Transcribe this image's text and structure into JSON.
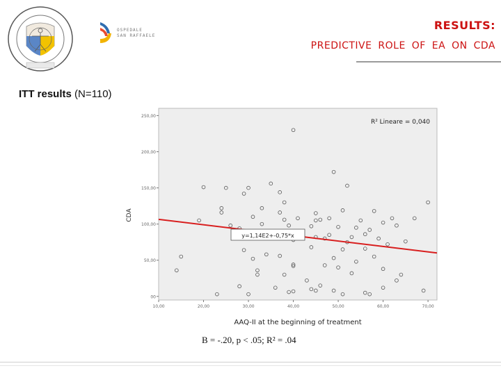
{
  "header": {
    "title": "RESULTS:",
    "subtitle": "PREDICTIVE ROLE OF EA ON CDA",
    "logos": {
      "university": "university-seal",
      "hospital": "hospital-logo"
    },
    "hospital_text": [
      "OSPEDALE",
      "SAN RAFFAELE"
    ]
  },
  "section": {
    "label_bold": "ITT results",
    "label_rest": "(N=110)"
  },
  "chart_data": {
    "type": "scatter",
    "xlabel": "AAQ-II at the beginning of treatment",
    "ylabel": "CDA",
    "xlim": [
      10,
      72
    ],
    "ylim": [
      -5,
      260
    ],
    "xticks": [
      10,
      20,
      30,
      40,
      50,
      60,
      70
    ],
    "xtick_labels": [
      "10,00",
      "20,00",
      "30,00",
      "40,00",
      "50,00",
      "60,00",
      "70,00"
    ],
    "yticks": [
      0,
      50,
      100,
      150,
      200,
      250
    ],
    "ytick_labels": [
      "00",
      "50,00",
      "100,00",
      "150,00",
      "200,00",
      "250,00"
    ],
    "r2_label": "R² Lineare = 0,040",
    "fit_label": "y=1,14E2+-0,75*x",
    "fit": {
      "intercept": 114,
      "slope": -0.75
    },
    "grid": false,
    "points": [
      [
        40,
        230
      ],
      [
        49,
        172
      ],
      [
        35,
        156
      ],
      [
        52,
        153
      ],
      [
        20,
        151
      ],
      [
        25,
        150
      ],
      [
        30,
        150
      ],
      [
        29,
        142
      ],
      [
        37,
        144
      ],
      [
        24,
        122
      ],
      [
        24,
        116
      ],
      [
        31,
        110
      ],
      [
        19,
        105
      ],
      [
        37,
        116
      ],
      [
        45,
        115
      ],
      [
        51,
        119
      ],
      [
        58,
        118
      ],
      [
        62,
        108
      ],
      [
        70,
        130
      ],
      [
        38,
        106
      ],
      [
        41,
        108
      ],
      [
        45,
        105
      ],
      [
        46,
        106
      ],
      [
        48,
        108
      ],
      [
        55,
        105
      ],
      [
        60,
        102
      ],
      [
        67,
        108
      ],
      [
        33,
        100
      ],
      [
        39,
        98
      ],
      [
        44,
        97
      ],
      [
        50,
        96
      ],
      [
        54,
        95
      ],
      [
        57,
        92
      ],
      [
        63,
        98
      ],
      [
        28,
        94
      ],
      [
        35,
        88
      ],
      [
        42,
        88
      ],
      [
        48,
        85
      ],
      [
        53,
        82
      ],
      [
        56,
        86
      ],
      [
        36,
        85
      ],
      [
        45,
        82
      ],
      [
        59,
        80
      ],
      [
        40,
        78
      ],
      [
        47,
        80
      ],
      [
        52,
        75
      ],
      [
        61,
        72
      ],
      [
        44,
        68
      ],
      [
        29,
        64
      ],
      [
        51,
        65
      ],
      [
        56,
        66
      ],
      [
        34,
        58
      ],
      [
        37,
        56
      ],
      [
        49,
        53
      ],
      [
        58,
        55
      ],
      [
        15,
        55
      ],
      [
        31,
        52
      ],
      [
        40,
        42
      ],
      [
        40,
        44
      ],
      [
        50,
        40
      ],
      [
        47,
        43
      ],
      [
        32,
        36
      ],
      [
        38,
        30
      ],
      [
        53,
        32
      ],
      [
        60,
        38
      ],
      [
        64,
        30
      ],
      [
        32,
        30
      ],
      [
        14,
        36
      ],
      [
        43,
        22
      ],
      [
        46,
        15
      ],
      [
        49,
        8
      ],
      [
        60,
        12
      ],
      [
        56,
        5
      ],
      [
        51,
        3
      ],
      [
        40,
        7
      ],
      [
        45,
        8
      ],
      [
        28,
        14
      ],
      [
        39,
        6
      ],
      [
        57,
        3
      ],
      [
        30,
        3
      ],
      [
        69,
        8
      ],
      [
        23,
        3
      ],
      [
        44,
        10
      ],
      [
        36,
        12
      ],
      [
        63,
        22
      ],
      [
        54,
        48
      ],
      [
        26,
        98
      ],
      [
        33,
        122
      ],
      [
        38,
        130
      ],
      [
        65,
        76
      ]
    ]
  },
  "stats_text": "B = -.20, p < .05; R² = .04"
}
